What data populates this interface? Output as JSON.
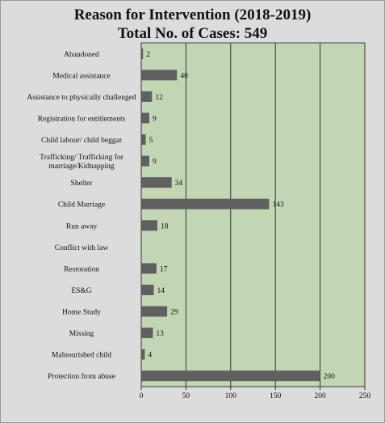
{
  "chart_data": {
    "type": "bar",
    "orientation": "horizontal",
    "title": "Reason for Intervention (2018-2019)",
    "subtitle": "Total No. of Cases: 549",
    "categories": [
      "Abandoned",
      "Medical assistance",
      "Assistance to physically challenged",
      "Registration for entitlements",
      "Child labour/ child beggar",
      "Trafficking/ Trafficking for marriage/Kidnapping",
      "Shelter",
      "Child Marriage",
      "Run away",
      "Conflict with law",
      "Restoration",
      "ES&G",
      "Home Study",
      "Missing",
      "Malnourished child",
      "Protection from abuse"
    ],
    "values": [
      2,
      40,
      12,
      9,
      5,
      9,
      34,
      143,
      18,
      null,
      17,
      14,
      29,
      13,
      4,
      200
    ],
    "value_labels": [
      "2",
      "40",
      "12",
      "9",
      "5",
      "9",
      "34",
      "143",
      "18",
      "",
      "17",
      "14",
      "29",
      "13",
      "4",
      "200"
    ],
    "xlim": [
      0,
      250
    ],
    "xticks": [
      0,
      50,
      100,
      150,
      200,
      250
    ],
    "grid": "vertical",
    "colors": {
      "bar": "#606060",
      "plot_bg": "#c3d6b4",
      "frame_bg": "#dcdcdc",
      "grid": "#333333"
    }
  }
}
